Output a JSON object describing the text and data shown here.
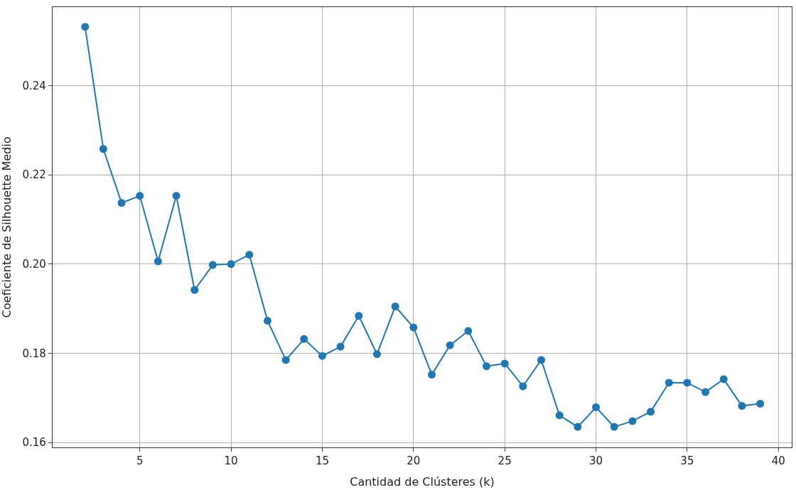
{
  "chart_data": {
    "type": "line",
    "xlabel": "Cantidad de Clústeres (k)",
    "ylabel": "Coeficiente de Silhouette Medio",
    "x": [
      2,
      3,
      4,
      5,
      6,
      7,
      8,
      9,
      10,
      11,
      12,
      13,
      14,
      15,
      16,
      17,
      18,
      19,
      20,
      21,
      22,
      23,
      24,
      25,
      26,
      27,
      28,
      29,
      30,
      31,
      32,
      33,
      34,
      35,
      36,
      37,
      38,
      39
    ],
    "series": [
      {
        "color": "#1f77b4",
        "values": [
          0.2532,
          0.2258,
          0.2137,
          0.2153,
          0.2006,
          0.2153,
          0.1942,
          0.1998,
          0.2,
          0.2021,
          0.1873,
          0.1785,
          0.1832,
          0.1794,
          0.1815,
          0.1884,
          0.1798,
          0.1905,
          0.1858,
          0.1752,
          0.1818,
          0.185,
          0.1771,
          0.1777,
          0.1726,
          0.1785,
          0.1661,
          0.1635,
          0.1679,
          0.1635,
          0.1648,
          0.1669,
          0.1734,
          0.1734,
          0.1713,
          0.1742,
          0.1682,
          0.1687
        ]
      }
    ],
    "xlim": [
      0.22,
      40.73
    ],
    "ylim": [
      0.1589,
      0.2576
    ],
    "xticks": [
      5,
      10,
      15,
      20,
      25,
      30,
      35,
      40
    ],
    "yticks": [
      0.16,
      0.18,
      {
        "value": 0.2,
        "label": "0.20"
      },
      0.22,
      0.24
    ],
    "grid": true,
    "marker": "circle",
    "line_style": "solid"
  }
}
